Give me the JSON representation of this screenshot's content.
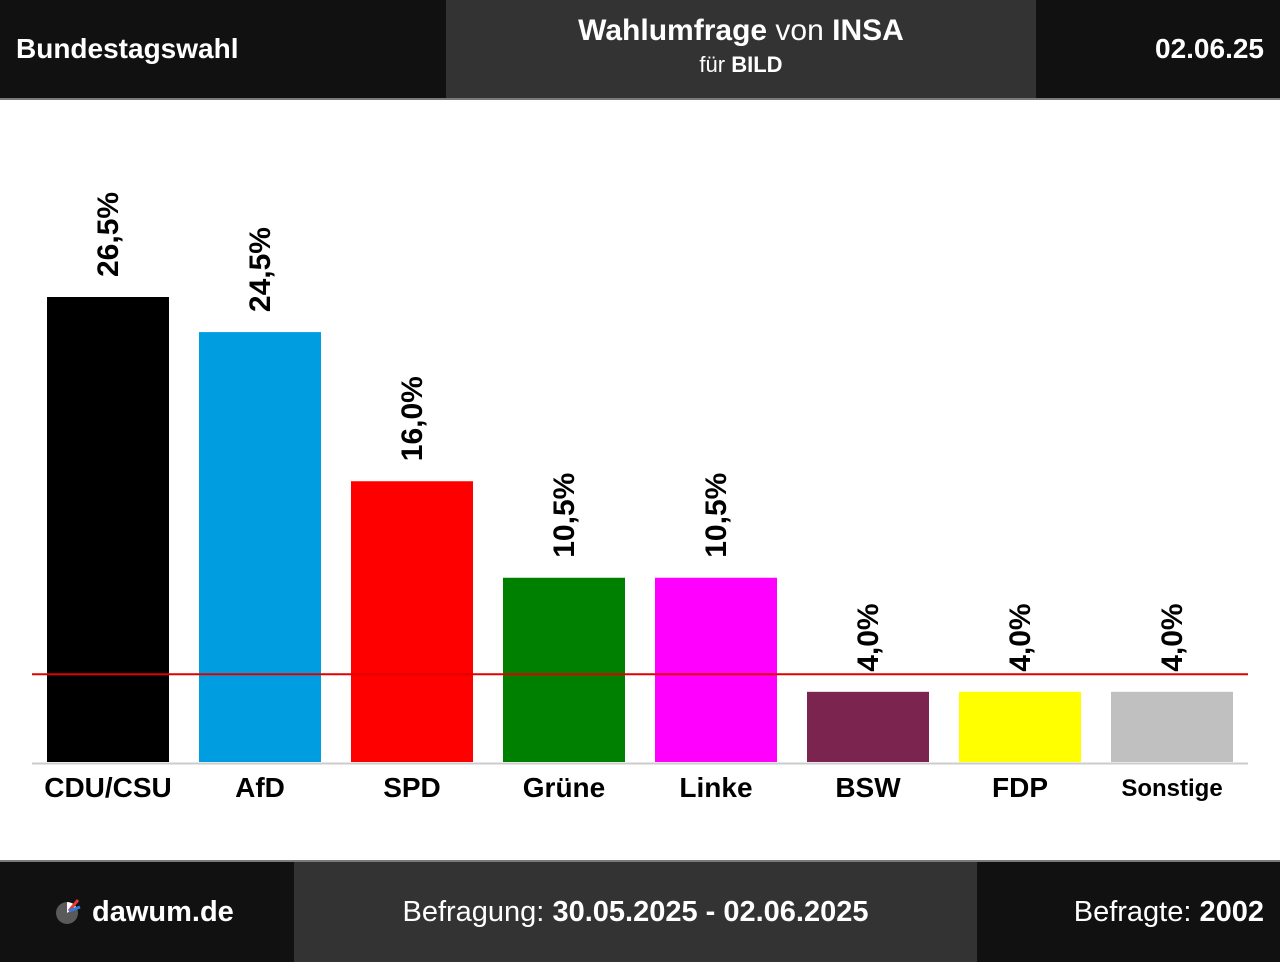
{
  "header": {
    "left": "Bundestagswahl",
    "title_main": "Wahlumfrage",
    "title_von": "von",
    "title_institute": "INSA",
    "sub_fuer": "für",
    "sub_client": "BILD",
    "date": "02.06.25"
  },
  "footer": {
    "logo_text": "dawum.de",
    "period_label": "Befragung:",
    "period_value": "30.05.2025 - 02.06.2025",
    "respondents_label": "Befragte:",
    "respondents_value": "2002"
  },
  "chart_data": {
    "type": "bar",
    "categories": [
      "CDU/CSU",
      "AfD",
      "SPD",
      "Grüne",
      "Linke",
      "BSW",
      "FDP",
      "Sonstige"
    ],
    "values": [
      26.5,
      24.5,
      16.0,
      10.5,
      10.5,
      4.0,
      4.0,
      4.0
    ],
    "value_labels": [
      "26,5%",
      "24,5%",
      "16,0%",
      "10,5%",
      "10,5%",
      "4,0%",
      "4,0%",
      "4,0%"
    ],
    "colors": [
      "#000000",
      "#009ee0",
      "#ff0000",
      "#008000",
      "#ff00ff",
      "#7b2450",
      "#ffff00",
      "#c0c0c0"
    ],
    "threshold": 5,
    "threshold_color": "#e00000",
    "ylim": [
      0,
      26.5
    ],
    "grid": false
  }
}
